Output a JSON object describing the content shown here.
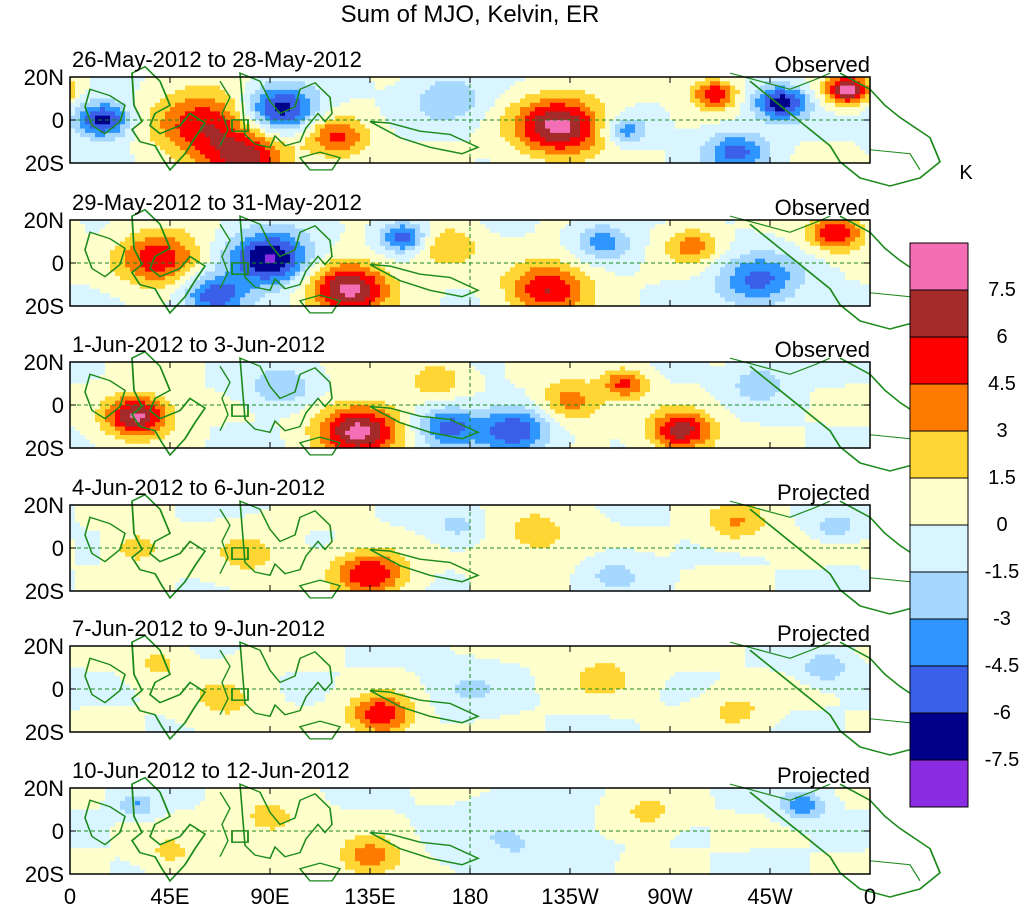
{
  "chart_data": {
    "type": "heatmap",
    "title": "Sum of MJO, Kelvin, ER",
    "colorbar": {
      "unit": "K",
      "levels": [
        "7.5",
        "6",
        "4.5",
        "3",
        "1.5",
        "0",
        "-1.5",
        "-3",
        "-4.5",
        "-6",
        "-7.5"
      ],
      "colors": [
        "#f46eb6",
        "#a52a2a",
        "#ff0000",
        "#ff7b00",
        "#ffd633",
        "#ffffcc",
        "#d9f5ff",
        "#a6d8ff",
        "#2f96ff",
        "#3a5fe8",
        "#00008b",
        "#8b2be2"
      ]
    },
    "xaxis": {
      "ticks": [
        "0",
        "45E",
        "90E",
        "135E",
        "180",
        "135W",
        "90W",
        "45W",
        "0"
      ],
      "range": [
        0,
        360
      ]
    },
    "yaxis": {
      "ticks": [
        "20N",
        "0",
        "20S"
      ],
      "range": [
        -20,
        20
      ]
    },
    "panels": [
      {
        "period": "26-May-2012 to 28-May-2012",
        "status": "Observed"
      },
      {
        "period": "29-May-2012 to 31-May-2012",
        "status": "Observed"
      },
      {
        "period": "1-Jun-2012 to 3-Jun-2012",
        "status": "Observed"
      },
      {
        "period": "4-Jun-2012 to 6-Jun-2012",
        "status": "Projected"
      },
      {
        "period": "7-Jun-2012 to 9-Jun-2012",
        "status": "Projected"
      },
      {
        "period": "10-Jun-2012 to 12-Jun-2012",
        "status": "Projected"
      }
    ],
    "blobs": [
      [
        {
          "lon": 60,
          "lat": -2,
          "r": 22,
          "v": 6
        },
        {
          "lon": 120,
          "lat": -8,
          "r": 14,
          "v": 5
        },
        {
          "lon": 95,
          "lat": 5,
          "r": 16,
          "v": -7
        },
        {
          "lon": 15,
          "lat": 0,
          "r": 12,
          "v": -7
        },
        {
          "lon": 220,
          "lat": -3,
          "r": 20,
          "v": 8
        },
        {
          "lon": 250,
          "lat": -5,
          "r": 10,
          "v": -4
        },
        {
          "lon": 290,
          "lat": 12,
          "r": 10,
          "v": 6
        },
        {
          "lon": 320,
          "lat": 8,
          "r": 12,
          "v": -7
        },
        {
          "lon": 350,
          "lat": 14,
          "r": 10,
          "v": 8
        },
        {
          "lon": 300,
          "lat": -15,
          "r": 14,
          "v": -5
        },
        {
          "lon": 170,
          "lat": 10,
          "r": 16,
          "v": -3
        },
        {
          "lon": 80,
          "lat": -18,
          "r": 18,
          "v": 6
        }
      ],
      [
        {
          "lon": 40,
          "lat": 2,
          "r": 18,
          "v": 6
        },
        {
          "lon": 90,
          "lat": 2,
          "r": 18,
          "v": -8
        },
        {
          "lon": 125,
          "lat": -12,
          "r": 18,
          "v": 8
        },
        {
          "lon": 170,
          "lat": 8,
          "r": 14,
          "v": 3
        },
        {
          "lon": 215,
          "lat": -12,
          "r": 18,
          "v": 6
        },
        {
          "lon": 240,
          "lat": 10,
          "r": 12,
          "v": -4
        },
        {
          "lon": 280,
          "lat": 8,
          "r": 12,
          "v": 4
        },
        {
          "lon": 310,
          "lat": -8,
          "r": 18,
          "v": -5
        },
        {
          "lon": 345,
          "lat": 14,
          "r": 12,
          "v": 6
        },
        {
          "lon": 150,
          "lat": 12,
          "r": 10,
          "v": -6
        },
        {
          "lon": 65,
          "lat": -15,
          "r": 14,
          "v": -6
        }
      ],
      [
        {
          "lon": 30,
          "lat": -5,
          "r": 14,
          "v": 8
        },
        {
          "lon": 130,
          "lat": -12,
          "r": 18,
          "v": 8
        },
        {
          "lon": 170,
          "lat": -10,
          "r": 14,
          "v": -5
        },
        {
          "lon": 200,
          "lat": -12,
          "r": 16,
          "v": -6
        },
        {
          "lon": 225,
          "lat": 2,
          "r": 14,
          "v": 4
        },
        {
          "lon": 250,
          "lat": 10,
          "r": 10,
          "v": 5
        },
        {
          "lon": 275,
          "lat": -12,
          "r": 14,
          "v": 7
        },
        {
          "lon": 310,
          "lat": 10,
          "r": 12,
          "v": -3
        },
        {
          "lon": 95,
          "lat": 8,
          "r": 14,
          "v": -3
        },
        {
          "lon": 165,
          "lat": 12,
          "r": 12,
          "v": 3
        }
      ],
      [
        {
          "lon": 135,
          "lat": -12,
          "r": 16,
          "v": 6
        },
        {
          "lon": 80,
          "lat": -3,
          "r": 18,
          "v": 2
        },
        {
          "lon": 210,
          "lat": 5,
          "r": 22,
          "v": 2
        },
        {
          "lon": 300,
          "lat": 12,
          "r": 14,
          "v": 3
        },
        {
          "lon": 175,
          "lat": 10,
          "r": 12,
          "v": -2
        },
        {
          "lon": 245,
          "lat": -12,
          "r": 14,
          "v": -2
        },
        {
          "lon": 30,
          "lat": 0,
          "r": 10,
          "v": 3
        },
        {
          "lon": 345,
          "lat": 10,
          "r": 8,
          "v": -3
        }
      ],
      [
        {
          "lon": 140,
          "lat": -12,
          "r": 14,
          "v": 6
        },
        {
          "lon": 70,
          "lat": -5,
          "r": 18,
          "v": 2
        },
        {
          "lon": 180,
          "lat": 0,
          "r": 16,
          "v": -1.6
        },
        {
          "lon": 240,
          "lat": 6,
          "r": 18,
          "v": 2
        },
        {
          "lon": 300,
          "lat": -10,
          "r": 14,
          "v": 2
        },
        {
          "lon": 340,
          "lat": 10,
          "r": 10,
          "v": -3
        },
        {
          "lon": 40,
          "lat": 12,
          "r": 12,
          "v": 2
        }
      ],
      [
        {
          "lon": 135,
          "lat": -12,
          "r": 14,
          "v": 4
        },
        {
          "lon": 90,
          "lat": 5,
          "r": 18,
          "v": 2
        },
        {
          "lon": 200,
          "lat": -5,
          "r": 26,
          "v": -1.6
        },
        {
          "lon": 330,
          "lat": 12,
          "r": 10,
          "v": -4
        },
        {
          "lon": 260,
          "lat": 8,
          "r": 14,
          "v": 2
        },
        {
          "lon": 45,
          "lat": -10,
          "r": 12,
          "v": 2
        },
        {
          "lon": 30,
          "lat": 12,
          "r": 8,
          "v": -3
        }
      ]
    ]
  }
}
